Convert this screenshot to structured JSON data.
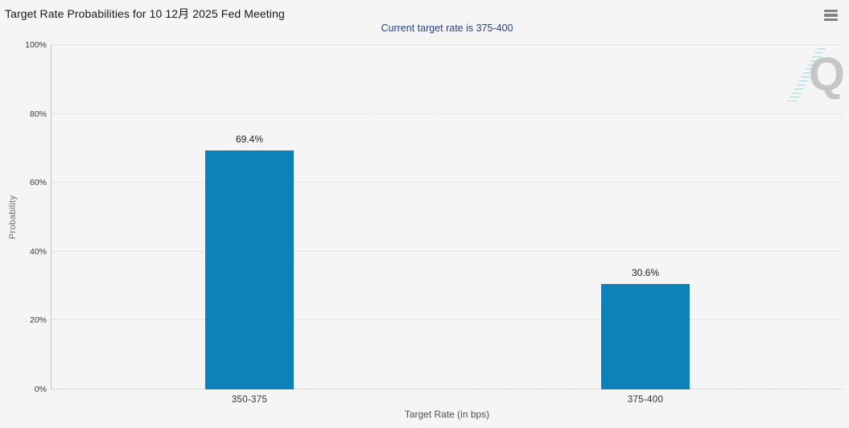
{
  "header": {
    "title": "Target Rate Probabilities for 10 12月 2025 Fed Meeting",
    "subtitle": "Current target rate is 375-400",
    "menu_icon": "hamburger-icon"
  },
  "colors": {
    "background": "#f5f5f6",
    "bar": "#0d81ba",
    "subtitle_text": "#27427b",
    "gridline": "#d2d2d2",
    "watermark_gray": "#c6c6c6",
    "watermark_teal": "#5ac8d8"
  },
  "chart_data": {
    "type": "bar",
    "title": "Target Rate Probabilities for 10 12月 2025 Fed Meeting",
    "subtitle": "Current target rate is 375-400",
    "categories": [
      "350-375",
      "375-400"
    ],
    "values": [
      69.4,
      30.6
    ],
    "value_labels": [
      "69.4%",
      "30.6%"
    ],
    "xlabel": "Target Rate (in bps)",
    "ylabel": "Probability",
    "ylim": [
      0,
      100
    ],
    "yticks": [
      0,
      20,
      40,
      60,
      80,
      100
    ],
    "ytick_labels": [
      "0%",
      "20%",
      "40%",
      "60%",
      "80%",
      "100%"
    ],
    "grid": "horizontal-dotted",
    "legend": false,
    "bar_color": "#0d81ba",
    "watermark": "Q"
  }
}
